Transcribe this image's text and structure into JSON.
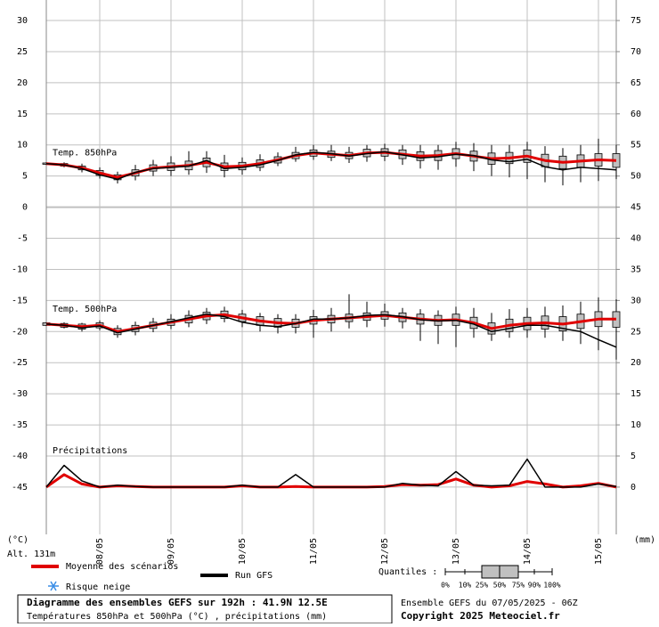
{
  "chart_data": {
    "type": "line",
    "title": "Diagramme des ensembles GEFS sur 192h : 41.9N 12.5E",
    "subtitle": "Températures 850hPa et 500hPa (°C) , précipitations (mm)",
    "run_info": "Ensemble GEFS du 07/05/2025 - 06Z",
    "copyright": "Copyright 2025 Meteociel.fr",
    "y_label": "(°C)",
    "y2_label": "(mm)",
    "altitude": "Alt. 131m",
    "annotations": [
      "Temp. 850hPa",
      "Temp. 500hPa",
      "Précipitations"
    ],
    "legend": {
      "mean": "Moyenne des scénarios",
      "gfs": "Run GFS",
      "snow": "Risque neige",
      "quantiles": "Quantiles :",
      "quantile_ticks": [
        "0%",
        "10%",
        "25%",
        "50%",
        "75%",
        "90%",
        "100%"
      ]
    },
    "colors": {
      "mean": "#e00000",
      "gfs": "#000000",
      "box": "#c0c0c0",
      "grid": "#c0c0c0",
      "snow": "#3a8ee6"
    },
    "grid": true,
    "x": [
      0,
      6,
      12,
      18,
      24,
      30,
      36,
      42,
      48,
      54,
      60,
      66,
      72,
      78,
      84,
      90,
      96,
      102,
      108,
      114,
      120,
      126,
      132,
      138,
      144,
      150,
      156,
      162,
      168,
      174,
      180,
      186,
      192
    ],
    "xlim": [
      0,
      192
    ],
    "xticks": [
      {
        "value": 18,
        "label": "08/05"
      },
      {
        "value": 42,
        "label": "09/05"
      },
      {
        "value": 66,
        "label": "10/05"
      },
      {
        "value": 90,
        "label": "11/05"
      },
      {
        "value": 114,
        "label": "12/05"
      },
      {
        "value": 138,
        "label": "13/05"
      },
      {
        "value": 162,
        "label": "14/05"
      },
      {
        "value": 186,
        "label": "15/05"
      }
    ],
    "ylim": [
      -52.6,
      33.3
    ],
    "yticks": [
      -45,
      -40,
      -35,
      -30,
      -25,
      -20,
      -15,
      -10,
      -5,
      0,
      5,
      10,
      15,
      20,
      25,
      30
    ],
    "y2lim": [
      -7.6,
      78.3
    ],
    "y2ticks": [
      0,
      5,
      10,
      15,
      20,
      25,
      30,
      35,
      40,
      45,
      50,
      55,
      60,
      65,
      70,
      75
    ],
    "temp850": {
      "mean": [
        7,
        6.8,
        6.3,
        5.5,
        4.8,
        5.5,
        6.3,
        6.5,
        6.7,
        7.2,
        6.5,
        6.6,
        7,
        7.6,
        8.3,
        8.7,
        8.5,
        8.3,
        8.7,
        8.8,
        8.5,
        8.2,
        8.3,
        8.6,
        8.2,
        7.8,
        7.9,
        8.2,
        7.5,
        7.2,
        7.4,
        7.6,
        7.5
      ],
      "gfs": [
        7,
        6.8,
        6.2,
        5.2,
        4.5,
        5.6,
        6.2,
        6.4,
        6.6,
        7.5,
        6.2,
        6.4,
        6.8,
        7.5,
        8.4,
        8.8,
        8.6,
        8.2,
        8.6,
        8.9,
        8.4,
        7.9,
        8.1,
        8.5,
        8.3,
        7.6,
        7.3,
        7.7,
        6.5,
        6,
        6.4,
        6.2,
        6
      ],
      "q25": [
        6.9,
        6.6,
        6,
        5.1,
        4.4,
        5,
        5.8,
        5.9,
        6,
        6.5,
        5.9,
        6,
        6.4,
        7.1,
        7.8,
        8.2,
        8,
        7.8,
        8.1,
        8.2,
        7.8,
        7.5,
        7.5,
        7.8,
        7.4,
        6.9,
        7,
        7.2,
        6.5,
        6.2,
        6.4,
        6.6,
        6.4
      ],
      "q75": [
        7.1,
        7,
        6.6,
        5.9,
        5.2,
        6,
        6.8,
        7.1,
        7.4,
        7.9,
        7.1,
        7.2,
        7.6,
        8.1,
        8.8,
        9.2,
        9,
        8.8,
        9.3,
        9.4,
        9.2,
        8.9,
        9.1,
        9.4,
        9,
        8.7,
        8.8,
        9.2,
        8.5,
        8.2,
        8.4,
        8.6,
        8.6
      ],
      "min": [
        6.8,
        6.4,
        5.6,
        4.6,
        3.8,
        4.3,
        5,
        5,
        5.2,
        5.5,
        4.8,
        5.2,
        5.8,
        6.6,
        7.3,
        7.6,
        7.4,
        7.1,
        7.3,
        7.4,
        6.8,
        6.2,
        6,
        6.5,
        5.8,
        5,
        4.8,
        4.5,
        4,
        3.5,
        4,
        4.2,
        4.5
      ],
      "max": [
        7.2,
        7.2,
        7,
        6.4,
        5.7,
        6.8,
        7.6,
        8.2,
        9,
        9,
        8.4,
        8,
        8.5,
        8.8,
        9.7,
        10,
        10,
        9.7,
        10,
        10.2,
        10,
        10,
        10,
        10.5,
        10.3,
        10,
        10,
        10.5,
        9.8,
        9.5,
        10,
        11,
        10
      ]
    },
    "temp500": {
      "mean": [
        -18.8,
        -19,
        -19.2,
        -19,
        -20,
        -19.5,
        -19,
        -18.5,
        -18,
        -17.5,
        -17.3,
        -17.8,
        -18.3,
        -18.6,
        -18.7,
        -18.2,
        -18,
        -17.8,
        -17.6,
        -17.4,
        -17.7,
        -18,
        -18.2,
        -18.1,
        -18.6,
        -19.5,
        -19,
        -18.7,
        -18.6,
        -18.8,
        -18.4,
        -18,
        -18
      ],
      "gfs": [
        -18.8,
        -19,
        -19.4,
        -19.1,
        -20.2,
        -19.6,
        -19,
        -18.4,
        -17.8,
        -17.2,
        -17.6,
        -18.5,
        -19,
        -19.2,
        -18.7,
        -18,
        -18,
        -17.8,
        -17.4,
        -17.3,
        -17.6,
        -18.1,
        -18.3,
        -18.2,
        -18.8,
        -20,
        -19.5,
        -19,
        -19,
        -19.5,
        -20,
        -21.3,
        -22.5
      ],
      "q25": [
        -19,
        -19.3,
        -19.6,
        -19.4,
        -20.5,
        -20,
        -19.5,
        -19,
        -18.6,
        -18.1,
        -17.9,
        -18.4,
        -19,
        -19.3,
        -19.3,
        -18.8,
        -18.6,
        -18.4,
        -18.2,
        -18,
        -18.4,
        -18.8,
        -19,
        -19,
        -19.5,
        -20.4,
        -20,
        -19.7,
        -19.6,
        -19.9,
        -19.5,
        -19.2,
        -19.3
      ],
      "q75": [
        -18.6,
        -18.7,
        -18.8,
        -18.6,
        -19.5,
        -19,
        -18.5,
        -18,
        -17.4,
        -16.9,
        -16.7,
        -17.2,
        -17.6,
        -17.9,
        -18,
        -17.6,
        -17.4,
        -17.2,
        -17,
        -16.8,
        -17,
        -17.2,
        -17.4,
        -17.2,
        -17.7,
        -18.6,
        -18,
        -17.7,
        -17.5,
        -17.6,
        -17.2,
        -16.8,
        -16.8
      ],
      "min": [
        -19.1,
        -19.5,
        -20,
        -19.8,
        -21,
        -20.6,
        -20.1,
        -19.6,
        -19.3,
        -18.8,
        -18.5,
        -19.3,
        -20,
        -20.3,
        -20.3,
        -21,
        -20,
        -19.5,
        -19.3,
        -19.2,
        -19.5,
        -21.5,
        -22,
        -22.5,
        -21,
        -21.5,
        -21,
        -21,
        -21,
        -21.5,
        -22,
        -23,
        -24.5
      ],
      "max": [
        -18.5,
        -18.5,
        -18.6,
        -18.2,
        -19,
        -18.4,
        -17.8,
        -17.2,
        -16.6,
        -16.2,
        -16,
        -16.5,
        -17,
        -17.2,
        -17.2,
        -16.5,
        -16.2,
        -14,
        -15.2,
        -15.5,
        -16.2,
        -16.4,
        -16.6,
        -16,
        -16.2,
        -17,
        -16.4,
        -16.2,
        -16,
        -15.8,
        -15.2,
        -14.5,
        -14.8
      ]
    },
    "precip": {
      "mean": [
        0,
        2,
        0.5,
        0,
        0.2,
        0.1,
        0,
        0,
        0,
        0,
        0,
        0.2,
        0,
        0,
        0.1,
        0,
        0,
        0,
        0,
        0.1,
        0.4,
        0.3,
        0.4,
        1.3,
        0.3,
        0,
        0.2,
        0.9,
        0.5,
        0,
        0.2,
        0.6,
        0
      ],
      "gfs": [
        0,
        3.5,
        1,
        0,
        0.3,
        0.1,
        0,
        0,
        0,
        0,
        0,
        0.3,
        0,
        0,
        2,
        0,
        0,
        0,
        0,
        0,
        0.6,
        0.3,
        0.2,
        2.5,
        0.3,
        0.2,
        0.3,
        4.5,
        0,
        0,
        0,
        0.5,
        0.1
      ]
    }
  }
}
